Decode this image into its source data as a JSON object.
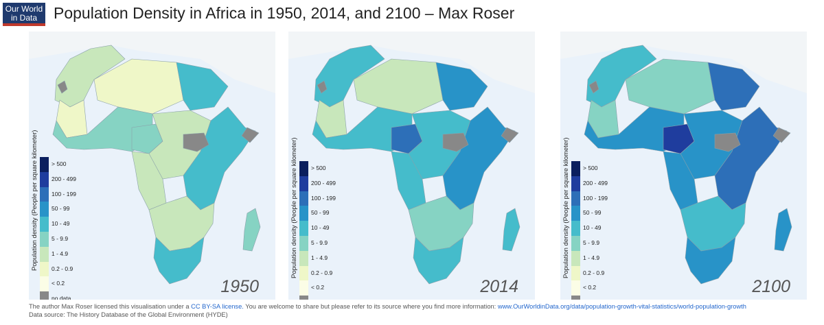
{
  "logo": {
    "line1": "Our World",
    "line2": "in Data"
  },
  "title": "Population Density in Africa in 1950, 2014, and 2100 – Max Roser",
  "legend": {
    "title": "Population density (People per square kilometer)",
    "bins": [
      {
        "label": "> 500",
        "color": "#0b1f5e"
      },
      {
        "label": "200 - 499",
        "color": "#1f3d9e"
      },
      {
        "label": "100 - 199",
        "color": "#2d6fb8"
      },
      {
        "label": "50 - 99",
        "color": "#2893c8"
      },
      {
        "label": "10 - 49",
        "color": "#45bccb"
      },
      {
        "label": "5 - 9.9",
        "color": "#86d3c3"
      },
      {
        "label": "1 - 4.9",
        "color": "#c8e7bb"
      },
      {
        "label": "0.2 - 0.9",
        "color": "#eff7c8"
      },
      {
        "label": "< 0.2",
        "color": "#fbfde6"
      },
      {
        "label": "no data",
        "color": "#888888"
      }
    ]
  },
  "maps": [
    {
      "year": "1950",
      "fills": {
        "north": "#c8e7bb",
        "sahara": "#eff7c8",
        "nile": "#45bccb",
        "west": "#86d3c3",
        "nigeria": "#86d3c3",
        "central": "#c8e7bb",
        "east": "#45bccb",
        "south": "#c8e7bb",
        "southtip": "#45bccb",
        "madagascar": "#86d3c3",
        "nodata": "#888888"
      }
    },
    {
      "year": "2014",
      "fills": {
        "north": "#45bccb",
        "sahara": "#c8e7bb",
        "nile": "#2893c8",
        "west": "#45bccb",
        "nigeria": "#2d6fb8",
        "central": "#45bccb",
        "east": "#2893c8",
        "south": "#86d3c3",
        "southtip": "#45bccb",
        "madagascar": "#45bccb",
        "nodata": "#888888"
      }
    },
    {
      "year": "2100",
      "fills": {
        "north": "#45bccb",
        "sahara": "#86d3c3",
        "nile": "#2d6fb8",
        "west": "#2893c8",
        "nigeria": "#1f3d9e",
        "central": "#2893c8",
        "east": "#2d6fb8",
        "south": "#45bccb",
        "southtip": "#2893c8",
        "madagascar": "#2893c8",
        "nodata": "#888888"
      }
    }
  ],
  "footer": {
    "line1_text": "The author Max Roser licensed this visualisation under a",
    "license_link": "CC BY-SA license.",
    "line1_text2": "You are welcome to share but please refer to its source where you find more information:",
    "source_link": "www.OurWorldinData.org/data/population-growth-vital-statistics/world-population-growth",
    "line2": "Data source: The History Database of the Global Environment (HYDE)"
  }
}
